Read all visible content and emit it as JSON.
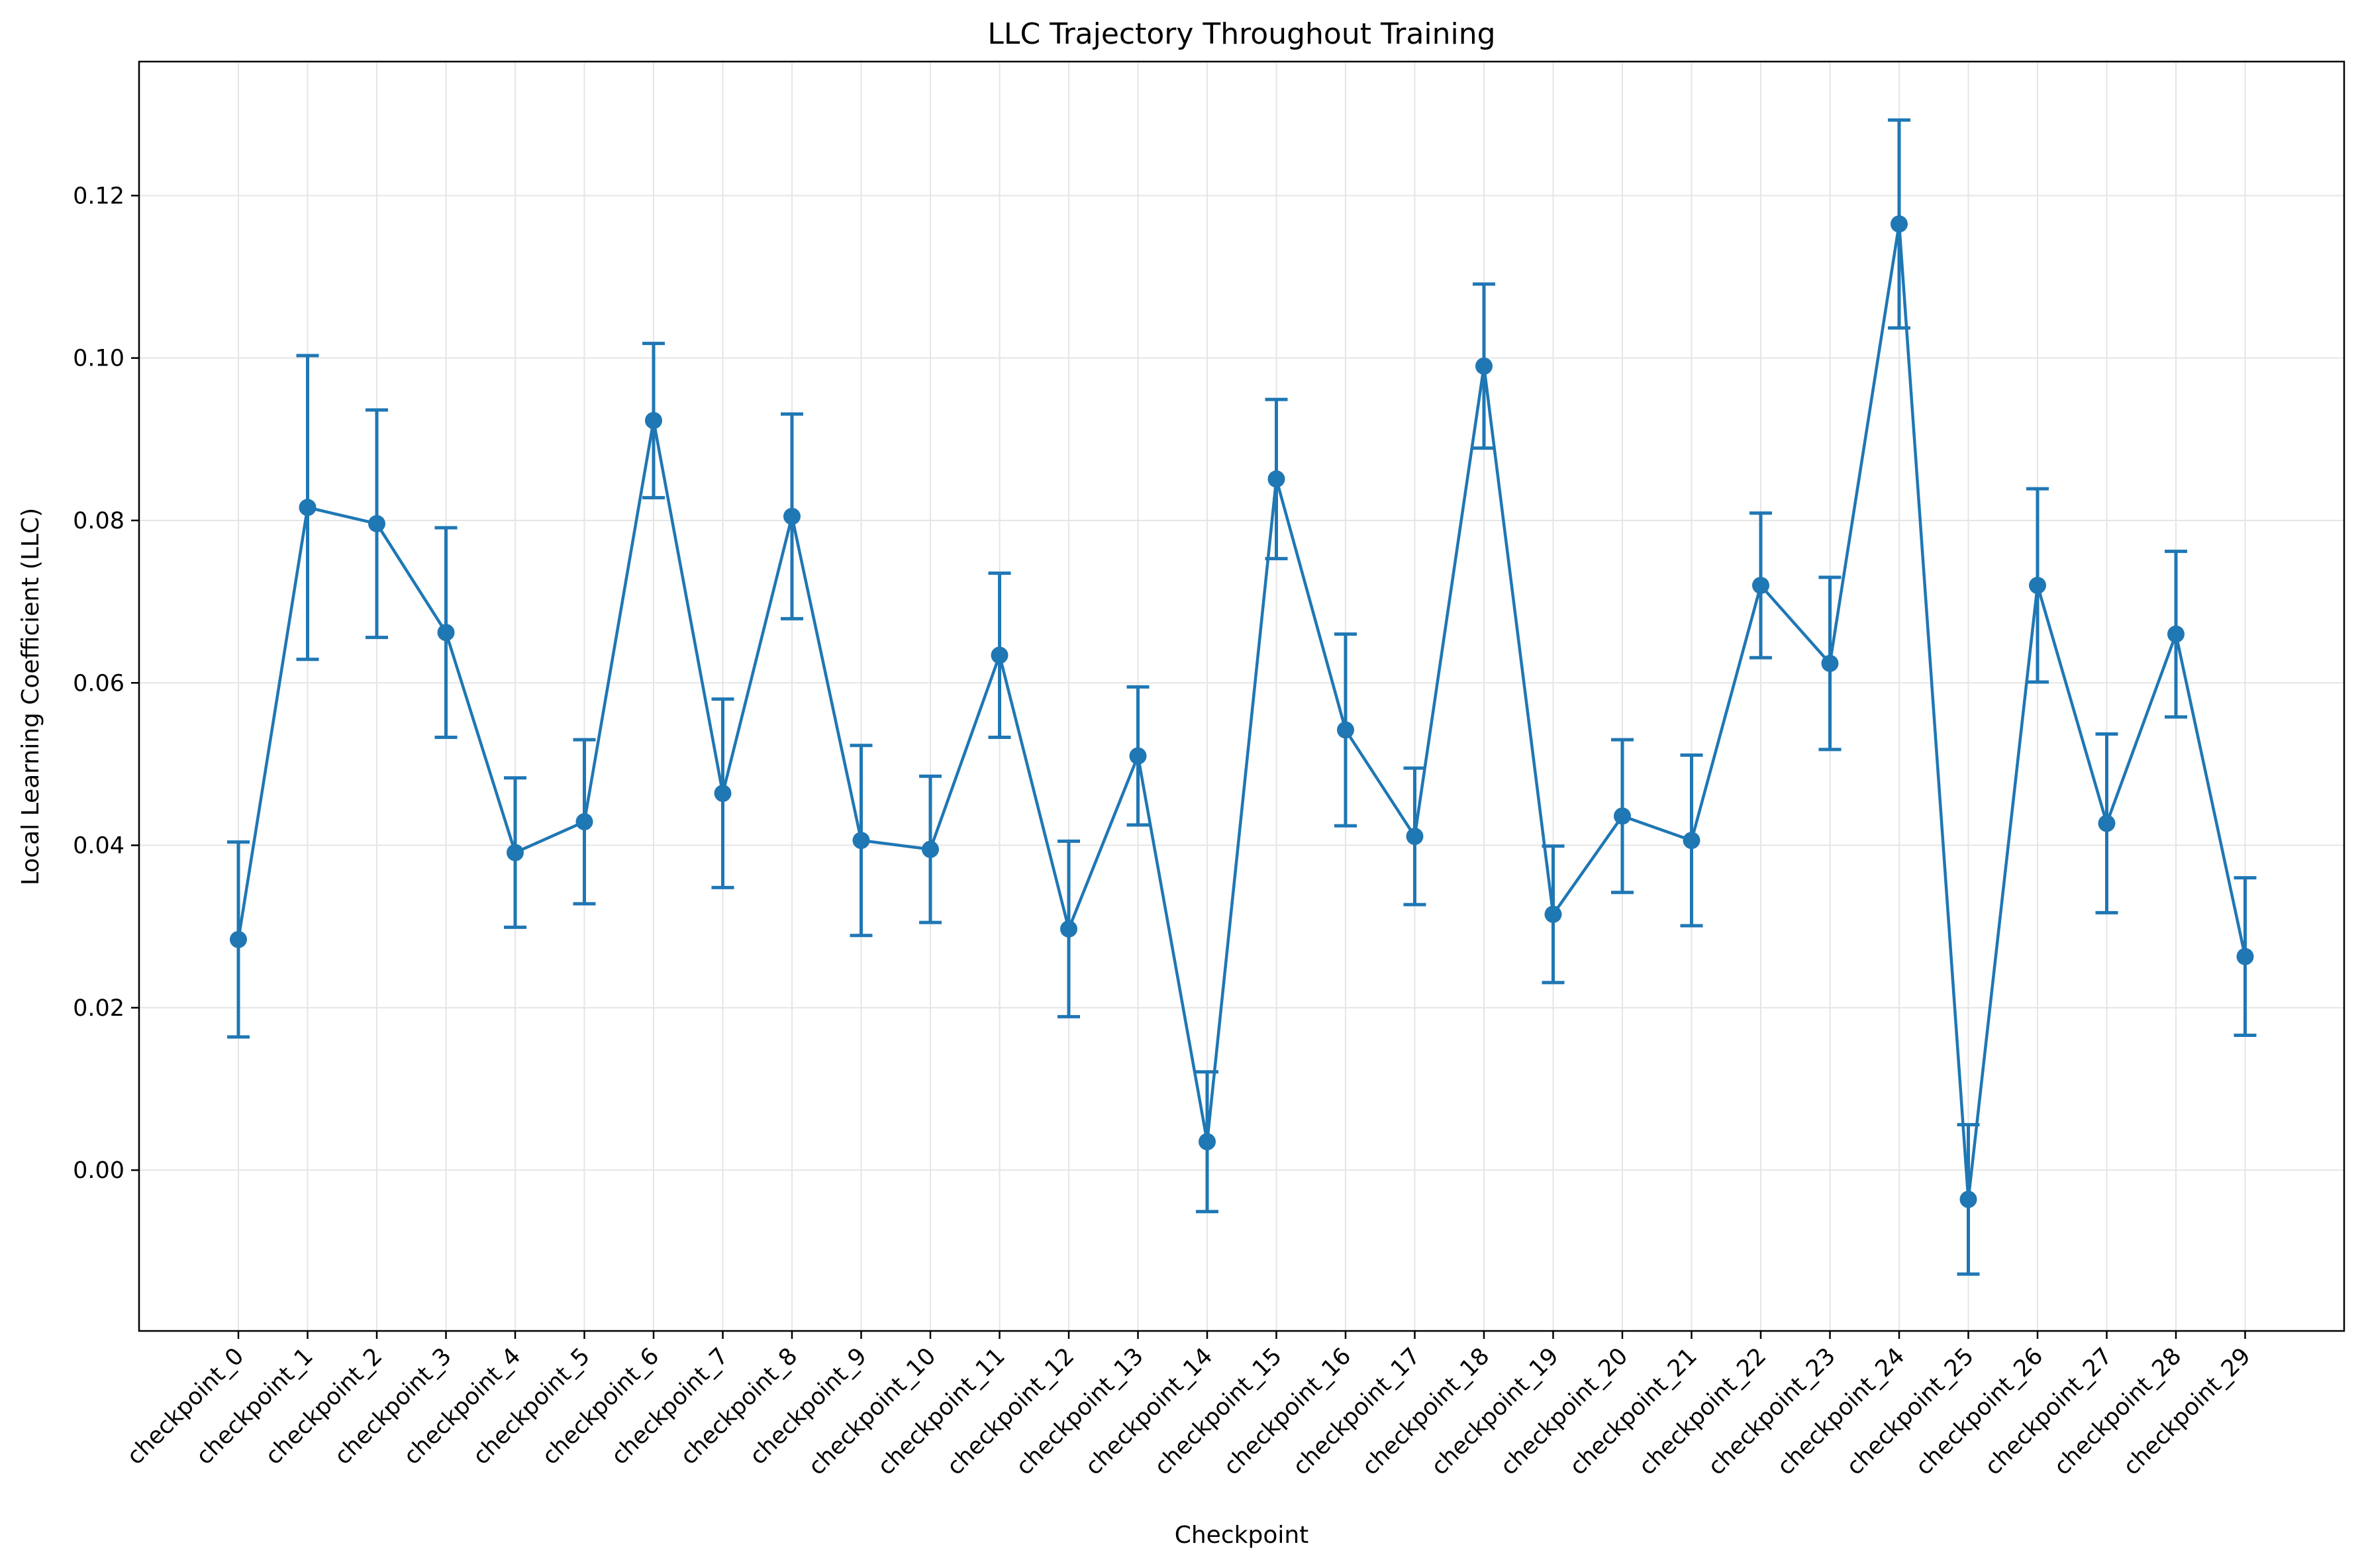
{
  "chart_data": {
    "type": "line",
    "title": "LLC Trajectory Throughout Training",
    "xlabel": "Checkpoint",
    "ylabel": "Local Learning Coefficient (LLC)",
    "categories": [
      "checkpoint_0",
      "checkpoint_1",
      "checkpoint_2",
      "checkpoint_3",
      "checkpoint_4",
      "checkpoint_5",
      "checkpoint_6",
      "checkpoint_7",
      "checkpoint_8",
      "checkpoint_9",
      "checkpoint_10",
      "checkpoint_11",
      "checkpoint_12",
      "checkpoint_13",
      "checkpoint_14",
      "checkpoint_15",
      "checkpoint_16",
      "checkpoint_17",
      "checkpoint_18",
      "checkpoint_19",
      "checkpoint_20",
      "checkpoint_21",
      "checkpoint_22",
      "checkpoint_23",
      "checkpoint_24",
      "checkpoint_25",
      "checkpoint_26",
      "checkpoint_27",
      "checkpoint_28",
      "checkpoint_29"
    ],
    "series": [
      {
        "values": [
          0.0284,
          0.0816,
          0.0796,
          0.0662,
          0.0391,
          0.0429,
          0.0923,
          0.0464,
          0.0805,
          0.0406,
          0.0395,
          0.0634,
          0.0297,
          0.051,
          0.0035,
          0.0851,
          0.0542,
          0.0411,
          0.099,
          0.0315,
          0.0436,
          0.0406,
          0.072,
          0.0624,
          0.1165,
          -0.0036,
          0.072,
          0.0427,
          0.066,
          0.0263
        ],
        "error": [
          0.012,
          0.0187,
          0.014,
          0.0129,
          0.0092,
          0.0101,
          0.0095,
          0.0116,
          0.0126,
          0.0117,
          0.009,
          0.0101,
          0.0108,
          0.0085,
          0.0086,
          0.0098,
          0.0118,
          0.0084,
          0.0101,
          0.0084,
          0.0094,
          0.0105,
          0.0089,
          0.0106,
          0.0128,
          0.0092,
          0.0119,
          0.011,
          0.0102,
          0.0097
        ]
      }
    ],
    "yticks": [
      "0.00",
      "0.02",
      "0.04",
      "0.06",
      "0.08",
      "0.10",
      "0.12"
    ],
    "ylim": [
      -0.0198,
      0.1365
    ],
    "grid": true,
    "colors": {
      "series": "#1f77b4",
      "grid": "#e5e5e5",
      "axis": "#000000"
    }
  }
}
